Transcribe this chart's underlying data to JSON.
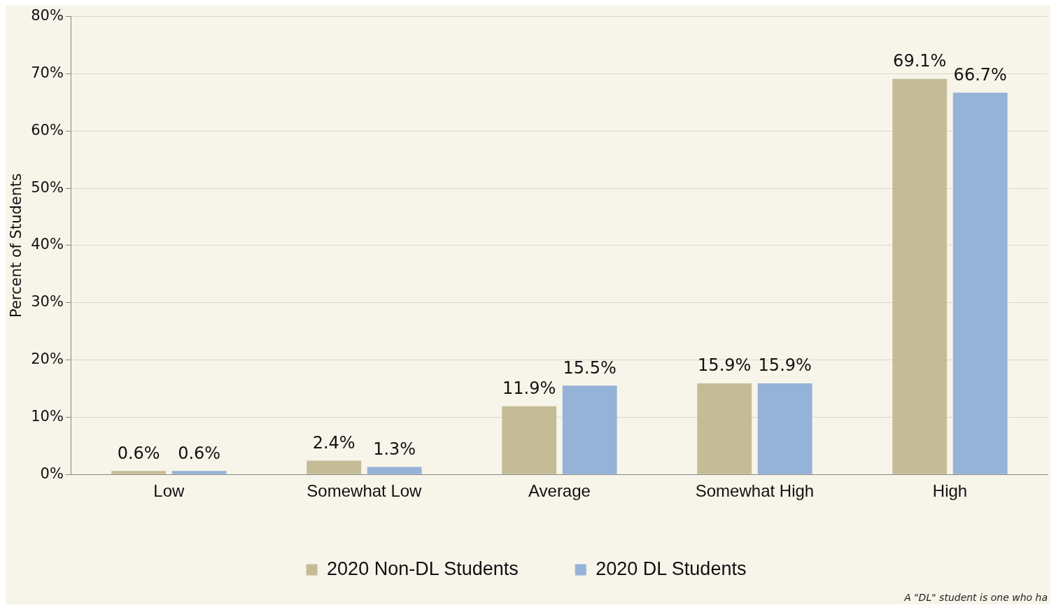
{
  "chart_data": {
    "type": "bar",
    "ylabel": "Percent of Students",
    "categories": [
      "Low",
      "Somewhat Low",
      "Average",
      "Somewhat High",
      "High"
    ],
    "series": [
      {
        "name": "2020 Non-DL Students",
        "color": "#c4bc96",
        "values": [
          0.6,
          2.4,
          11.9,
          15.9,
          69.1
        ],
        "value_labels": [
          "0.6%",
          "2.4%",
          "11.9%",
          "15.9%",
          "69.1%"
        ]
      },
      {
        "name": "2020 DL Students",
        "color": "#95b3d7",
        "values": [
          0.6,
          1.3,
          15.5,
          15.9,
          66.7
        ],
        "value_labels": [
          "0.6%",
          "1.3%",
          "15.5%",
          "15.9%",
          "66.7%"
        ]
      }
    ],
    "ylim": [
      0,
      80
    ],
    "yticks": [
      {
        "value": 0,
        "label": "0%"
      },
      {
        "value": 10,
        "label": "10%"
      },
      {
        "value": 20,
        "label": "20%"
      },
      {
        "value": 30,
        "label": "30%"
      },
      {
        "value": 40,
        "label": "40%"
      },
      {
        "value": 50,
        "label": "50%"
      },
      {
        "value": 60,
        "label": "60%"
      },
      {
        "value": 70,
        "label": "70%"
      },
      {
        "value": 80,
        "label": "80%"
      }
    ],
    "grid": "y",
    "legend": "bottom",
    "annotations": [
      "A \"DL\" student is one who ha"
    ]
  }
}
